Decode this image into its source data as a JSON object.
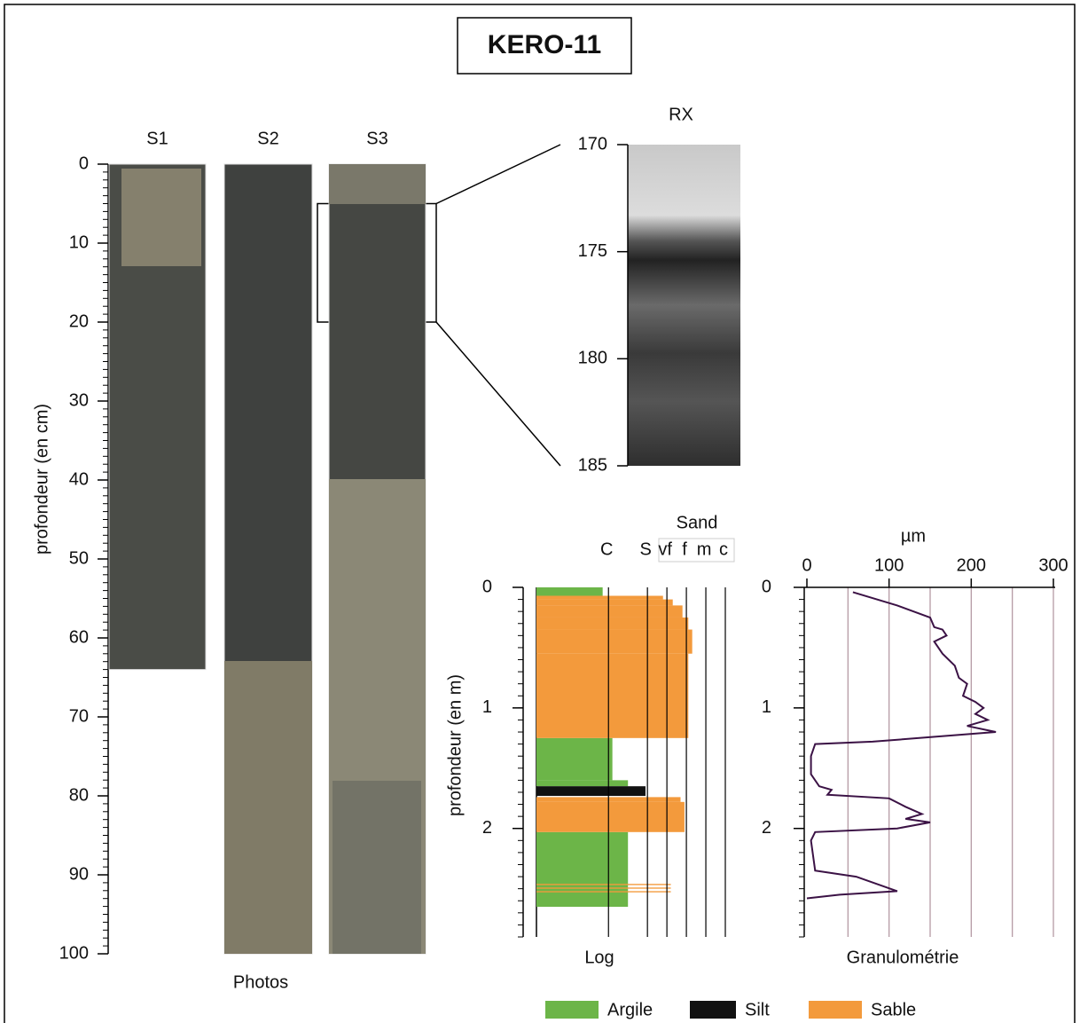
{
  "title": "KERO-11",
  "photos": {
    "label": "Photos",
    "axis_label": "profondeur (en cm)",
    "ylim": [
      0,
      100
    ],
    "yticks": [
      0,
      10,
      20,
      30,
      40,
      50,
      60,
      70,
      80,
      90,
      100
    ],
    "yminor_step": 1,
    "cores": [
      {
        "name": "S1",
        "length": 64
      },
      {
        "name": "S2",
        "length": 100
      },
      {
        "name": "S3",
        "length": 100
      }
    ],
    "zoom": [
      5,
      20
    ]
  },
  "rx": {
    "label": "RX",
    "ylim": [
      170,
      185
    ],
    "yticks": [
      170,
      175,
      180,
      185
    ]
  },
  "chart_data": [
    {
      "type": "log",
      "xlabel": "Log",
      "ylabel": "profondeur (en m)",
      "xheader": "Sand",
      "ylim": [
        0,
        2.9
      ],
      "yticks": [
        0,
        1,
        2
      ],
      "yminor_step": 0.1,
      "xlim": [
        -3.7,
        6
      ],
      "xticks": [
        {
          "value": 0,
          "label": "C"
        },
        {
          "value": 2,
          "label": "S"
        },
        {
          "value": 3,
          "label": "vf"
        },
        {
          "value": 4,
          "label": "f"
        },
        {
          "value": 5,
          "label": "m"
        },
        {
          "value": 6,
          "label": "c"
        }
      ],
      "series": [
        {
          "name": "Argile",
          "color": "#6cb548",
          "intervals": [
            [
              0,
              0.07,
              -0.3
            ],
            [
              1.25,
              1.6,
              0.2
            ],
            [
              1.6,
              1.65,
              1.0
            ],
            [
              2.03,
              2.65,
              1.0
            ]
          ]
        },
        {
          "name": "Silt",
          "color": "#111111",
          "intervals": [
            [
              1.65,
              1.73,
              1.9
            ]
          ]
        },
        {
          "name": "Sable",
          "color": "#f39a3c",
          "intervals": [
            [
              0.07,
              0.1,
              2.8
            ],
            [
              0.1,
              0.15,
              3.3
            ],
            [
              0.15,
              0.25,
              3.8
            ],
            [
              0.25,
              0.35,
              4.1
            ],
            [
              0.35,
              0.55,
              4.3
            ],
            [
              0.55,
              1.25,
              4.1
            ],
            [
              1.74,
              1.78,
              3.7
            ],
            [
              1.78,
              2.03,
              3.9
            ],
            [
              2.46,
              2.47,
              3.2
            ],
            [
              2.49,
              2.5,
              3.2
            ],
            [
              2.52,
              2.53,
              3.2
            ]
          ]
        }
      ]
    },
    {
      "type": "line",
      "xlabel": "Granulométrie",
      "unit": "µm",
      "xlim": [
        0,
        300
      ],
      "xticks": [
        0,
        100,
        200,
        300
      ],
      "xgrid": [
        50,
        100,
        150,
        200,
        250,
        300
      ],
      "ylim": [
        0,
        2.9
      ],
      "yticks": [
        0,
        1,
        2
      ],
      "yminor_step": 0.1,
      "color": "#3b1245",
      "depth": [
        0.04,
        0.15,
        0.25,
        0.33,
        0.35,
        0.4,
        0.45,
        0.55,
        0.65,
        0.75,
        0.8,
        0.9,
        0.95,
        1.0,
        1.05,
        1.1,
        1.15,
        1.2,
        1.28,
        1.3,
        1.4,
        1.55,
        1.65,
        1.68,
        1.72,
        1.75,
        1.82,
        1.88,
        1.92,
        1.95,
        2.0,
        2.03,
        2.1,
        2.35,
        2.4,
        2.52,
        2.55,
        2.58
      ],
      "values": [
        56,
        110,
        150,
        155,
        165,
        170,
        155,
        165,
        180,
        185,
        195,
        190,
        205,
        215,
        205,
        220,
        195,
        230,
        80,
        10,
        5,
        5,
        15,
        30,
        25,
        100,
        120,
        140,
        120,
        150,
        110,
        10,
        5,
        10,
        60,
        110,
        40,
        0
      ]
    }
  ]
}
